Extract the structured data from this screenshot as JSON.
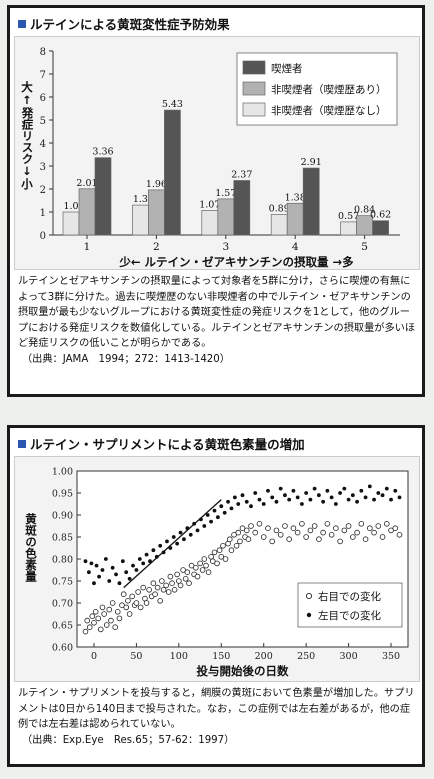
{
  "panel1": {
    "title": "ルテインによる黄斑変性症予防効果",
    "ylabel_top": "大",
    "ylabel_up": "↑",
    "ylabel_main": "発症リスク",
    "ylabel_down": "↓",
    "ylabel_bottom": "小",
    "xlabel": "少← ルテイン・ゼアキサンチンの摂取量 →多",
    "description": "ルテインとゼアキサンチンの摂取量によって対象者を5群に分け，さらに喫煙の有無によって3群に分けた。過去に喫煙歴のない非喫煙者の中でルテイン・ゼアキサンチンの摂取量が最も少ないグループにおける黄斑変性症の発症リスクを1として，他のグループにおける発症リスクを数値化している。ルテインとゼアキサンチンの摂取量が多いほど発症リスクの低いことが明らかである。",
    "source": "（出典：JAMA　1994；272：1413-1420）"
  },
  "panel2": {
    "title": "ルテイン・サプリメントによる黄斑色素量の増加",
    "ylabel": "黄斑の色素量",
    "xlabel": "投与開始後の日数",
    "description": "ルテイン・サプリメントを投与すると，網膜の黄斑において色素量が増加した。サプリメントは0日から140日まで投与された。なお，この症例では左右差があるが，他の症例では左右差は認められていない。",
    "source": "（出典：Exp.Eye　Res.65；57-62：1997）"
  },
  "chart_data": [
    {
      "type": "bar",
      "title": "ルテインによる黄斑変性症予防効果",
      "categories": [
        "1",
        "2",
        "3",
        "4",
        "5"
      ],
      "ylim": [
        0,
        8
      ],
      "yticks": [
        0,
        1,
        2,
        3,
        4,
        5,
        6,
        7,
        8
      ],
      "legend_position": "top-right",
      "series": [
        {
          "name": "非喫煙者（喫煙歴なし）",
          "color": "#e6e6e6",
          "values": [
            1.0,
            1.3,
            1.07,
            0.89,
            0.57
          ]
        },
        {
          "name": "非喫煙者（喫煙歴あり）",
          "color": "#b2b2b2",
          "values": [
            2.01,
            1.96,
            1.57,
            1.38,
            0.84
          ]
        },
        {
          "name": "喫煙者",
          "color": "#555555",
          "values": [
            3.36,
            5.43,
            2.37,
            2.91,
            0.62
          ]
        }
      ],
      "value_labels": [
        [
          "1.0",
          "1.3",
          "1.07",
          "0.89",
          "0.57"
        ],
        [
          "2.01",
          "1.96",
          "1.57",
          "1.38",
          "0.84"
        ],
        [
          "3.36",
          "5.43",
          "2.37",
          "2.91",
          "0.62"
        ]
      ]
    },
    {
      "type": "scatter",
      "title": "ルテイン・サプリメントによる黄斑色素量の増加",
      "xlabel": "投与開始後の日数",
      "ylabel": "黄斑の色素量",
      "xlim": [
        -20,
        370
      ],
      "ylim": [
        0.6,
        1.0
      ],
      "xticks": [
        0,
        50,
        100,
        150,
        200,
        250,
        300,
        350
      ],
      "yticks": [
        "0.60",
        "0.65",
        "0.70",
        "0.75",
        "0.80",
        "0.85",
        "0.90",
        "0.95",
        "1.00"
      ],
      "legend_position": "bottom-right",
      "series": [
        {
          "name": "右目での変化",
          "marker": "open-circle",
          "x": [
            -10,
            -8,
            -5,
            -2,
            0,
            2,
            5,
            8,
            10,
            12,
            15,
            18,
            20,
            22,
            25,
            28,
            30,
            33,
            35,
            38,
            40,
            42,
            45,
            48,
            50,
            52,
            55,
            58,
            60,
            62,
            65,
            68,
            70,
            72,
            75,
            78,
            80,
            82,
            85,
            88,
            90,
            92,
            95,
            98,
            100,
            102,
            105,
            108,
            110,
            112,
            115,
            118,
            120,
            122,
            125,
            128,
            130,
            132,
            135,
            138,
            140,
            142,
            145,
            148,
            150,
            152,
            155,
            158,
            160,
            162,
            165,
            168,
            170,
            172,
            175,
            178,
            180,
            182,
            185,
            190,
            195,
            200,
            205,
            210,
            215,
            220,
            225,
            230,
            235,
            240,
            245,
            250,
            255,
            260,
            265,
            270,
            275,
            280,
            285,
            290,
            295,
            300,
            305,
            310,
            315,
            320,
            325,
            330,
            335,
            340,
            345,
            350,
            355,
            360
          ],
          "y": [
            0.635,
            0.66,
            0.645,
            0.67,
            0.655,
            0.68,
            0.665,
            0.64,
            0.69,
            0.675,
            0.65,
            0.685,
            0.66,
            0.7,
            0.645,
            0.68,
            0.665,
            0.695,
            0.72,
            0.69,
            0.705,
            0.675,
            0.715,
            0.695,
            0.7,
            0.725,
            0.69,
            0.735,
            0.71,
            0.7,
            0.73,
            0.715,
            0.745,
            0.72,
            0.735,
            0.705,
            0.75,
            0.73,
            0.74,
            0.725,
            0.76,
            0.745,
            0.73,
            0.765,
            0.75,
            0.74,
            0.775,
            0.755,
            0.77,
            0.745,
            0.785,
            0.765,
            0.78,
            0.76,
            0.79,
            0.775,
            0.8,
            0.785,
            0.77,
            0.805,
            0.795,
            0.815,
            0.79,
            0.82,
            0.805,
            0.83,
            0.8,
            0.835,
            0.845,
            0.82,
            0.855,
            0.83,
            0.86,
            0.84,
            0.87,
            0.85,
            0.865,
            0.845,
            0.875,
            0.86,
            0.88,
            0.85,
            0.87,
            0.84,
            0.865,
            0.855,
            0.875,
            0.845,
            0.87,
            0.86,
            0.88,
            0.85,
            0.865,
            0.875,
            0.845,
            0.86,
            0.88,
            0.855,
            0.87,
            0.84,
            0.865,
            0.875,
            0.85,
            0.86,
            0.88,
            0.845,
            0.87,
            0.86,
            0.875,
            0.85,
            0.88,
            0.865,
            0.87,
            0.855
          ]
        },
        {
          "name": "左目での変化",
          "marker": "filled-dot",
          "x": [
            -10,
            -6,
            -3,
            0,
            3,
            6,
            10,
            14,
            18,
            22,
            26,
            30,
            34,
            38,
            42,
            46,
            50,
            54,
            58,
            62,
            66,
            70,
            74,
            78,
            82,
            86,
            90,
            94,
            98,
            102,
            106,
            110,
            114,
            118,
            122,
            126,
            130,
            134,
            138,
            142,
            146,
            150,
            154,
            158,
            162,
            166,
            170,
            175,
            180,
            185,
            190,
            195,
            200,
            205,
            210,
            215,
            220,
            225,
            230,
            235,
            240,
            245,
            250,
            255,
            260,
            265,
            270,
            275,
            280,
            285,
            290,
            295,
            300,
            305,
            310,
            315,
            320,
            325,
            330,
            335,
            340,
            345,
            350,
            355,
            360
          ],
          "y": [
            0.795,
            0.77,
            0.79,
            0.745,
            0.785,
            0.76,
            0.775,
            0.8,
            0.75,
            0.78,
            0.765,
            0.745,
            0.795,
            0.77,
            0.755,
            0.785,
            0.775,
            0.8,
            0.79,
            0.81,
            0.795,
            0.82,
            0.805,
            0.83,
            0.815,
            0.84,
            0.825,
            0.85,
            0.835,
            0.86,
            0.845,
            0.87,
            0.855,
            0.88,
            0.865,
            0.89,
            0.875,
            0.9,
            0.885,
            0.91,
            0.895,
            0.92,
            0.905,
            0.93,
            0.915,
            0.94,
            0.925,
            0.945,
            0.93,
            0.92,
            0.95,
            0.935,
            0.925,
            0.955,
            0.94,
            0.93,
            0.96,
            0.945,
            0.935,
            0.955,
            0.94,
            0.925,
            0.95,
            0.935,
            0.96,
            0.945,
            0.93,
            0.955,
            0.94,
            0.925,
            0.95,
            0.96,
            0.935,
            0.945,
            0.93,
            0.955,
            0.94,
            0.965,
            0.935,
            0.95,
            0.945,
            0.96,
            0.935,
            0.955,
            0.94
          ]
        },
        {
          "name": "trend",
          "type": "line",
          "x": [
            35,
            150
          ],
          "y": [
            0.735,
            0.935
          ]
        }
      ]
    }
  ]
}
